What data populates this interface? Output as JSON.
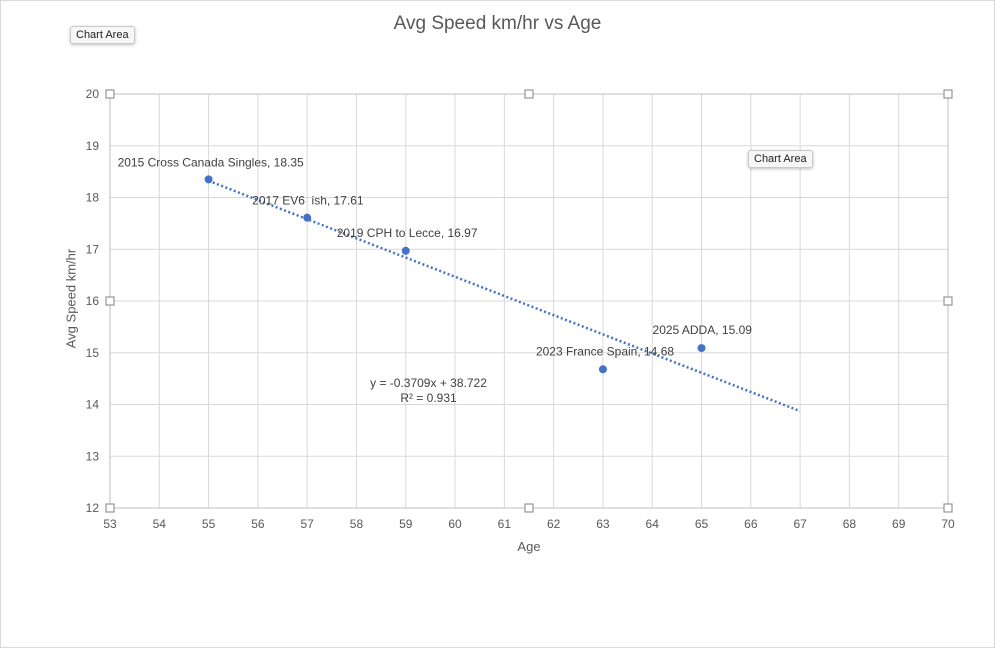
{
  "chart_data": {
    "type": "scatter",
    "title": "Avg Speed km/hr vs Age",
    "xlabel": "Age",
    "ylabel": "Avg Speed km/hr",
    "xlim": [
      53,
      70
    ],
    "ylim": [
      12,
      20
    ],
    "x_ticks": [
      53,
      54,
      55,
      56,
      57,
      58,
      59,
      60,
      61,
      62,
      63,
      64,
      65,
      66,
      67,
      68,
      69,
      70
    ],
    "y_ticks": [
      12,
      13,
      14,
      15,
      16,
      17,
      18,
      19,
      20
    ],
    "grid": true,
    "legend": "none",
    "series": [
      {
        "color": "#4472c4",
        "points": [
          {
            "x": 55,
            "y": 18.35,
            "label": "2015 Cross Canada Singles, 18.35"
          },
          {
            "x": 57,
            "y": 17.61,
            "label": "2017 EV6  ish, 17.61"
          },
          {
            "x": 59,
            "y": 16.97,
            "label": "2019 CPH to Lecce, 16.97"
          },
          {
            "x": 63,
            "y": 14.68,
            "label": "2023 France Spain, 14.68"
          },
          {
            "x": 65,
            "y": 15.09,
            "label": "2025 ADDA, 15.09"
          }
        ]
      }
    ],
    "trendline": {
      "type": "linear",
      "style": "dotted",
      "color": "#4472c4",
      "slope": -0.3709,
      "intercept": 38.722,
      "x_range": [
        55,
        67
      ],
      "equation": "y = -0.3709x + 38.722",
      "r_squared": "R² = 0.931"
    }
  },
  "tooltips": {
    "chart_area_top": "Chart Area",
    "chart_area_right": "Chart Area"
  }
}
